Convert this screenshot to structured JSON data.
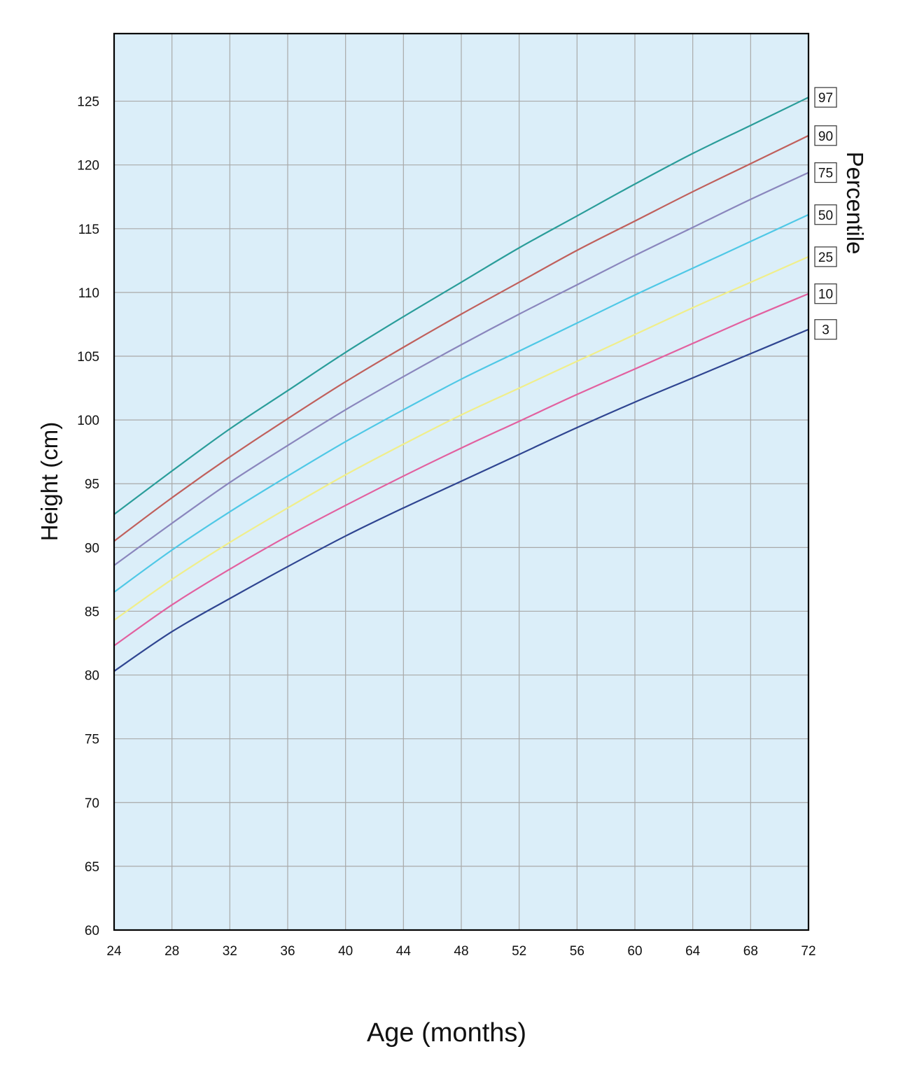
{
  "chart_data": {
    "type": "line",
    "title": "",
    "xlabel": "Age (months)",
    "ylabel": "Height (cm)",
    "legend_title": "Percentile",
    "legend_placement": "right",
    "xlim": [
      24,
      72
    ],
    "ylim": [
      60,
      130
    ],
    "grid": true,
    "x_ticks": [
      24,
      28,
      32,
      36,
      40,
      44,
      48,
      52,
      56,
      60,
      64,
      68,
      72
    ],
    "y_ticks": [
      60,
      65,
      70,
      75,
      80,
      85,
      90,
      95,
      100,
      105,
      110,
      115,
      120,
      125
    ],
    "x": [
      24,
      28,
      32,
      36,
      40,
      44,
      48,
      52,
      56,
      60,
      64,
      68,
      72
    ],
    "series": [
      {
        "name": "97",
        "color": "#2a9d9a",
        "values": [
          92.6,
          96.0,
          99.3,
          102.3,
          105.3,
          108.1,
          110.8,
          113.5,
          116.0,
          118.5,
          120.9,
          123.1,
          125.3
        ]
      },
      {
        "name": "90",
        "color": "#c0605c",
        "values": [
          90.5,
          93.9,
          97.1,
          100.1,
          103.0,
          105.7,
          108.3,
          110.8,
          113.3,
          115.6,
          117.9,
          120.1,
          122.3
        ]
      },
      {
        "name": "75",
        "color": "#8a86bd",
        "values": [
          88.6,
          91.9,
          95.1,
          98.0,
          100.8,
          103.4,
          105.9,
          108.3,
          110.6,
          112.9,
          115.1,
          117.3,
          119.4
        ]
      },
      {
        "name": "50",
        "color": "#4fc8e6",
        "values": [
          86.5,
          89.8,
          92.8,
          95.6,
          98.3,
          100.8,
          103.2,
          105.4,
          107.6,
          109.8,
          111.9,
          114.0,
          116.1
        ]
      },
      {
        "name": "25",
        "color": "#f0ee8a",
        "values": [
          84.3,
          87.5,
          90.4,
          93.1,
          95.7,
          98.1,
          100.4,
          102.5,
          104.6,
          106.7,
          108.8,
          110.8,
          112.8
        ]
      },
      {
        "name": "10",
        "color": "#e2609f",
        "values": [
          82.3,
          85.5,
          88.3,
          90.9,
          93.3,
          95.6,
          97.8,
          99.9,
          102.0,
          104.0,
          106.0,
          108.0,
          109.9
        ]
      },
      {
        "name": "3",
        "color": "#2f4591",
        "values": [
          80.3,
          83.4,
          86.0,
          88.5,
          90.9,
          93.1,
          95.2,
          97.3,
          99.4,
          101.4,
          103.3,
          105.2,
          107.1
        ]
      }
    ],
    "colors": {
      "plot_background": "#dbeef9",
      "grid": "#a9a9a9",
      "frame": "#000000"
    }
  }
}
